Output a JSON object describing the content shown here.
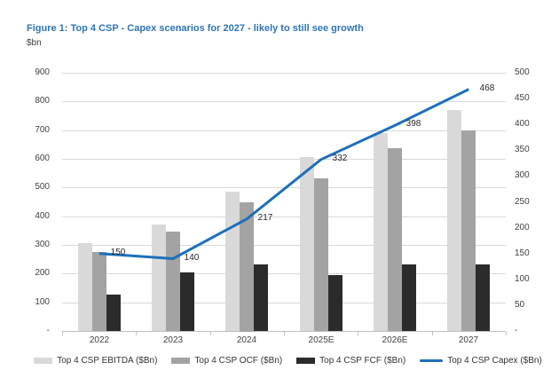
{
  "figure": {
    "title": "Figure 1: Top 4 CSP - Capex scenarios for 2027 - likely to still see growth",
    "unit": "$bn"
  },
  "colors": {
    "title_blue": "#2e74b5",
    "gridline": "#d9d9d9",
    "axis_line": "#bfbfbf",
    "axis_text": "#404040"
  },
  "chart_data": {
    "type": "bar",
    "subtype": "grouped-bar-with-line-combo",
    "categories": [
      "2022",
      "2023",
      "2024",
      "2025E",
      "2026E",
      "2027"
    ],
    "series": [
      {
        "name": "Top 4 CSP EBITDA ($Bn)",
        "type": "bar",
        "axis": "left",
        "color": "#d9d9d9",
        "values": [
          305,
          370,
          485,
          605,
          690,
          770
        ]
      },
      {
        "name": "Top 4 CSP OCF ($Bn)",
        "type": "bar",
        "axis": "left",
        "color": "#a3a3a3",
        "values": [
          275,
          345,
          450,
          532,
          637,
          700
        ]
      },
      {
        "name": "Top 4 CSP FCF ($Bn)",
        "type": "bar",
        "axis": "left",
        "color": "#2b2b2b",
        "values": [
          127,
          205,
          232,
          196,
          232,
          232
        ]
      },
      {
        "name": "Top 4 CSP Capex ($Bn)",
        "type": "line",
        "axis": "right",
        "color": "#1e6fb9",
        "values": [
          150,
          140,
          217,
          332,
          398,
          468
        ],
        "data_labels": [
          "150",
          "140",
          "217",
          "332",
          "398",
          "468"
        ]
      }
    ],
    "left_axis": {
      "range": [
        0,
        900
      ],
      "ticks": [
        "900",
        "800",
        "700",
        "600",
        "500",
        "400",
        "300",
        "200",
        "100",
        "-"
      ]
    },
    "right_axis": {
      "range": [
        0,
        500
      ],
      "ticks": [
        "500",
        "450",
        "400",
        "350",
        "300",
        "250",
        "200",
        "150",
        "100",
        "50",
        "-"
      ]
    },
    "grid": true,
    "legend_position": "bottom"
  }
}
